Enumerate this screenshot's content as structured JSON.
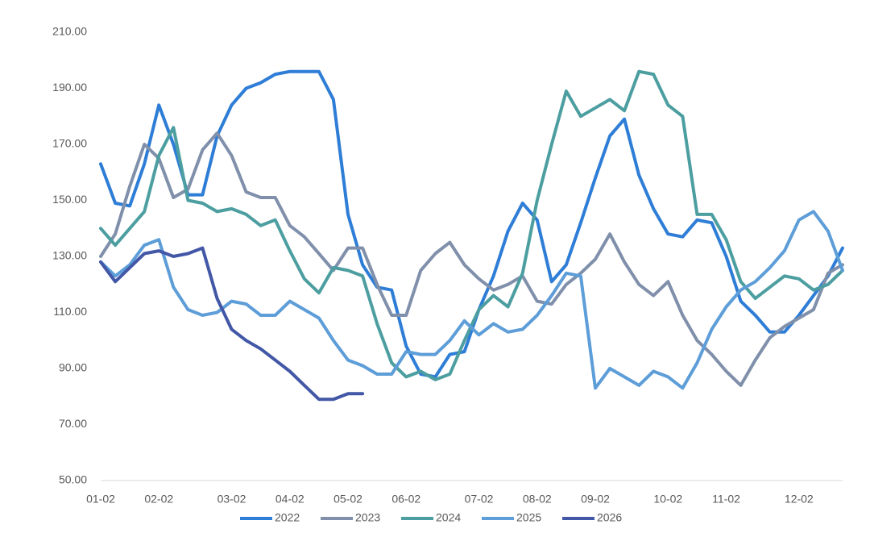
{
  "chart_data": {
    "type": "line",
    "categories": [
      "01-02",
      null,
      null,
      null,
      "02-02",
      null,
      null,
      null,
      null,
      "03-02",
      null,
      null,
      null,
      "04-02",
      null,
      null,
      null,
      "05-02",
      null,
      null,
      null,
      "06-02",
      null,
      null,
      null,
      null,
      "07-02",
      null,
      null,
      null,
      "08-02",
      null,
      null,
      null,
      "09-02",
      null,
      null,
      null,
      null,
      "10-02",
      null,
      null,
      null,
      "11-02",
      null,
      null,
      null,
      null,
      "12-02",
      null,
      null,
      null
    ],
    "series": [
      {
        "name": "2022",
        "color": "#2e7dd6",
        "values": [
          163,
          149,
          148,
          163,
          184,
          170,
          152,
          152,
          173,
          184,
          190,
          192,
          195,
          196,
          196,
          196,
          186,
          145,
          127,
          119,
          118,
          98,
          88,
          87,
          95,
          96,
          111,
          123,
          139,
          149,
          143,
          121,
          127,
          142,
          158,
          173,
          179,
          159,
          147,
          138,
          137,
          143,
          142,
          130,
          114,
          109,
          103,
          103,
          109,
          116,
          123,
          133
        ]
      },
      {
        "name": "2023",
        "color": "#8090ab",
        "values": [
          130,
          138,
          155,
          170,
          165,
          151,
          154,
          168,
          174,
          166,
          153,
          151,
          151,
          141,
          137,
          131,
          125,
          133,
          133,
          120,
          109,
          109,
          125,
          131,
          135,
          127,
          122,
          118,
          120,
          123,
          114,
          113,
          120,
          124,
          129,
          138,
          128,
          120,
          116,
          121,
          109,
          100,
          95,
          89,
          84,
          93,
          101,
          105,
          108,
          111,
          124,
          127
        ]
      },
      {
        "name": "2024",
        "color": "#4c9ea0",
        "values": [
          140,
          134,
          140,
          146,
          166,
          176,
          150,
          149,
          146,
          147,
          145,
          141,
          143,
          132,
          122,
          117,
          126,
          125,
          123,
          106,
          92,
          87,
          89,
          86,
          88,
          100,
          111,
          116,
          112,
          124,
          150,
          170,
          189,
          180,
          183,
          186,
          182,
          196,
          195,
          184,
          180,
          145,
          145,
          136,
          121,
          115,
          119,
          123,
          122,
          118,
          120,
          125
        ]
      },
      {
        "name": "2025",
        "color": "#5d9dd8",
        "values": [
          128,
          123,
          127,
          134,
          136,
          119,
          111,
          109,
          110,
          114,
          113,
          109,
          109,
          114,
          111,
          108,
          100,
          93,
          91,
          88,
          88,
          96,
          95,
          95,
          100,
          107,
          102,
          106,
          103,
          104,
          109,
          116,
          124,
          123,
          83,
          90,
          87,
          84,
          89,
          87,
          83,
          92,
          104,
          112,
          118,
          121,
          126,
          132,
          143,
          146,
          139,
          125
        ]
      },
      {
        "name": "2026",
        "color": "#4257a6",
        "values": [
          128,
          121,
          126,
          131,
          132,
          130,
          131,
          133,
          115,
          104,
          100,
          97,
          93,
          89,
          84,
          79,
          79,
          81,
          81,
          null,
          null,
          null,
          null,
          null,
          null,
          null,
          null,
          null,
          null,
          null,
          null,
          null,
          null,
          null,
          null,
          null,
          null,
          null,
          null,
          null,
          null,
          null,
          null,
          null,
          null,
          null,
          null,
          null,
          null,
          null,
          null,
          null
        ]
      }
    ],
    "ylim": [
      50,
      210
    ],
    "yticks": [
      {
        "value": 50,
        "label": "50.00"
      },
      {
        "value": 70,
        "label": "70.00"
      },
      {
        "value": 90,
        "label": "90.00"
      },
      {
        "value": 110,
        "label": "110.00"
      },
      {
        "value": 130,
        "label": "130.00"
      },
      {
        "value": 150,
        "label": "150.00"
      },
      {
        "value": 170,
        "label": "170.00"
      },
      {
        "value": 190,
        "label": "190.00"
      },
      {
        "value": 210,
        "label": "210.00"
      }
    ],
    "grid": false,
    "legend": "bottom"
  }
}
